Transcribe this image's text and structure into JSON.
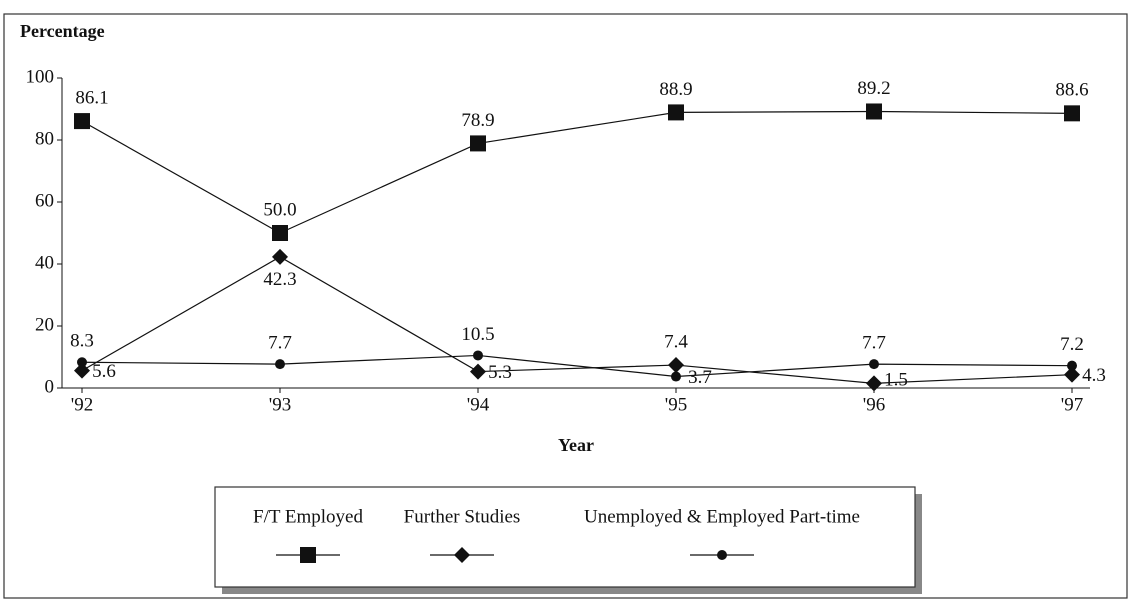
{
  "chart_data": {
    "type": "line",
    "y_label": "Percentage",
    "x_label": "Year",
    "categories": [
      "'92",
      "'93",
      "'94",
      "'95",
      "'96",
      "'97"
    ],
    "ylim": [
      0,
      100
    ],
    "yticks": [
      0,
      20,
      40,
      60,
      80,
      100
    ],
    "series": [
      {
        "name": "F/T Employed",
        "color": "#111111",
        "marker": "square",
        "values": [
          86.1,
          50.0,
          78.9,
          88.9,
          89.2,
          88.6
        ],
        "value_labels": [
          "86.1",
          "50.0",
          "78.9",
          "88.9",
          "89.2",
          "88.6"
        ]
      },
      {
        "name": "Further Studies",
        "color": "#111111",
        "marker": "diamond",
        "values": [
          5.6,
          42.3,
          5.3,
          7.4,
          1.5,
          4.3
        ],
        "value_labels": [
          "5.6",
          "42.3",
          "5.3",
          "7.4",
          "1.5",
          "4.3"
        ]
      },
      {
        "name": "Unemployed & Employed Part-time",
        "color": "#111111",
        "marker": "circle",
        "values": [
          8.3,
          7.7,
          10.5,
          3.7,
          7.7,
          7.2
        ],
        "value_labels": [
          "8.3",
          "7.7",
          "10.5",
          "3.7",
          "7.7",
          "7.2"
        ]
      }
    ]
  }
}
